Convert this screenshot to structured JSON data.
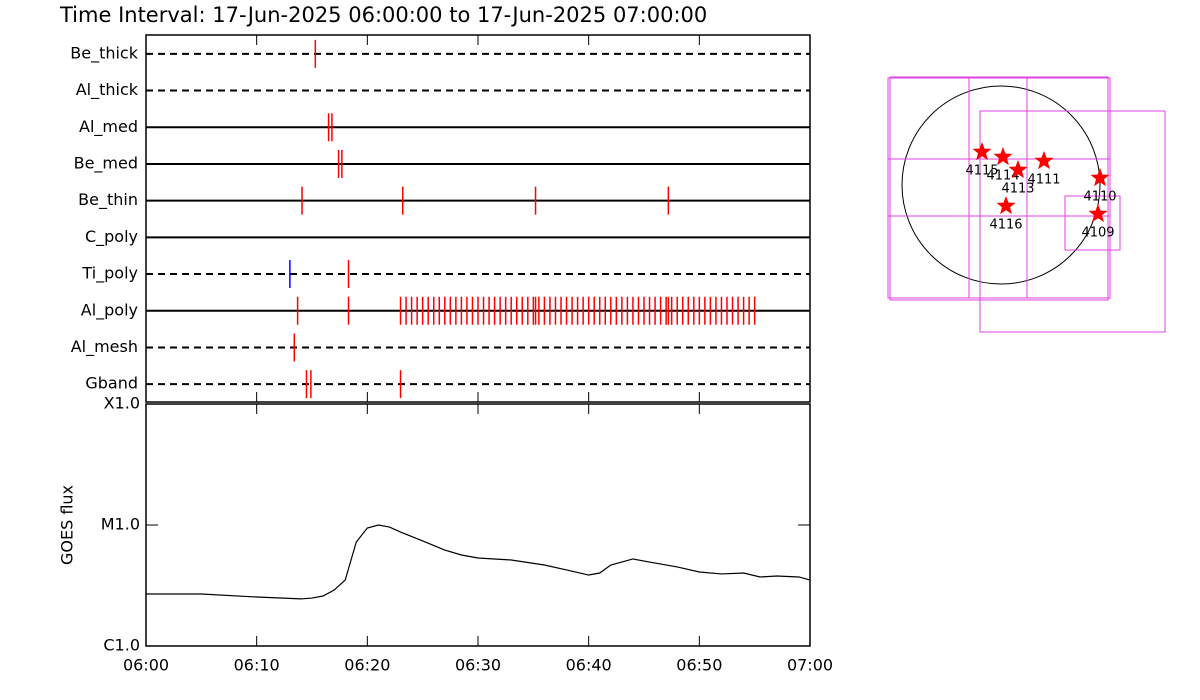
{
  "chart_data": [
    {
      "type": "timeline",
      "title": "Time Interval: 17-Jun-2025 06:00:00 to 17-Jun-2025 07:00:00",
      "xlim": [
        0,
        60
      ],
      "series": [
        {
          "name": "Be_thick",
          "line": "dashed",
          "color": "#ff0000",
          "values": [
            15.3
          ]
        },
        {
          "name": "Al_thick",
          "line": "dashed",
          "color": "#ff0000",
          "values": []
        },
        {
          "name": "Al_med",
          "line": "solid",
          "color": "#ff0000",
          "values": [
            16.5,
            16.8
          ]
        },
        {
          "name": "Be_med",
          "line": "solid",
          "color": "#ff0000",
          "values": [
            17.4,
            17.7
          ]
        },
        {
          "name": "Be_thin",
          "line": "solid",
          "color": "#ff0000",
          "values": [
            14.1,
            23.2,
            35.2,
            47.2
          ]
        },
        {
          "name": "C_poly",
          "line": "solid",
          "color": "#ff0000",
          "values": []
        },
        {
          "name": "Ti_poly",
          "line": "dashed",
          "colors": [
            "#0000ff",
            "#ff0000"
          ],
          "values": [
            13.0,
            18.3
          ]
        },
        {
          "name": "Al_poly",
          "line": "solid",
          "color": "#ff0000",
          "values": [
            13.7,
            18.3,
            23,
            23.5,
            24,
            24.5,
            25,
            25.5,
            26,
            26.5,
            27,
            27.5,
            28,
            28.5,
            29,
            29.5,
            30,
            30.5,
            31,
            31.5,
            32,
            32.5,
            33,
            33.5,
            34,
            34.5,
            35,
            35.2,
            35.5,
            36,
            36.5,
            37,
            37.5,
            38,
            38.5,
            39,
            39.5,
            40,
            40.5,
            41,
            41.5,
            42,
            42.5,
            43,
            43.5,
            44,
            44.5,
            45,
            45.5,
            46,
            46.5,
            47,
            47.2,
            47.5,
            48,
            48.5,
            49,
            49.5,
            50,
            50.5,
            51,
            51.5,
            52,
            52.5,
            53,
            53.5,
            54,
            54.5,
            55
          ]
        },
        {
          "name": "Al_mesh",
          "line": "dashed",
          "color": "#ff0000",
          "values": [
            13.4
          ]
        },
        {
          "name": "Gband",
          "line": "dashed",
          "color": "#ff0000",
          "values": [
            14.5,
            14.9,
            23.0
          ]
        }
      ]
    },
    {
      "type": "line",
      "y_label": "GOES flux",
      "log": true,
      "color": "#000000",
      "x": [
        0,
        5,
        10,
        14,
        15,
        16,
        17,
        18,
        19,
        20,
        21,
        22,
        23,
        25,
        27,
        28.5,
        30,
        33,
        36,
        38,
        40,
        41,
        42,
        44,
        45.5,
        48,
        50,
        52,
        54,
        55.5,
        57,
        59,
        60
      ],
      "values": [
        2.69e-06,
        2.69e-06,
        2.54e-06,
        2.45e-06,
        2.49e-06,
        2.59e-06,
        2.9e-06,
        3.51e-06,
        7.24e-06,
        9.44e-06,
        1e-05,
        9.62e-06,
        8.75e-06,
        7.38e-06,
        6.21e-06,
        5.65e-06,
        5.34e-06,
        5.14e-06,
        4.67e-06,
        4.25e-06,
        3.86e-06,
        4.01e-06,
        4.67e-06,
        5.24e-06,
        4.94e-06,
        4.5e-06,
        4.09e-06,
        3.94e-06,
        4.01e-06,
        3.72e-06,
        3.79e-06,
        3.72e-06,
        3.51e-06
      ],
      "xlim": [
        0,
        60
      ],
      "xticks": [
        {
          "value": 0,
          "label": "06:00"
        },
        {
          "value": 10,
          "label": "06:10"
        },
        {
          "value": 20,
          "label": "06:20"
        },
        {
          "value": 30,
          "label": "06:30"
        },
        {
          "value": 40,
          "label": "06:40"
        },
        {
          "value": 50,
          "label": "06:50"
        },
        {
          "value": 60,
          "label": "07:00"
        }
      ],
      "ylim": [
        1e-06,
        0.0001
      ],
      "yticks": [
        {
          "value": 1e-06,
          "label": "C1.0"
        },
        {
          "value": 1e-05,
          "label": "M1.0"
        },
        {
          "value": 0.0001,
          "label": "X1.0"
        }
      ]
    }
  ],
  "map": {
    "labels": [
      "4115",
      "4114",
      "4113",
      "4111",
      "4110",
      "4116",
      "4109"
    ]
  }
}
